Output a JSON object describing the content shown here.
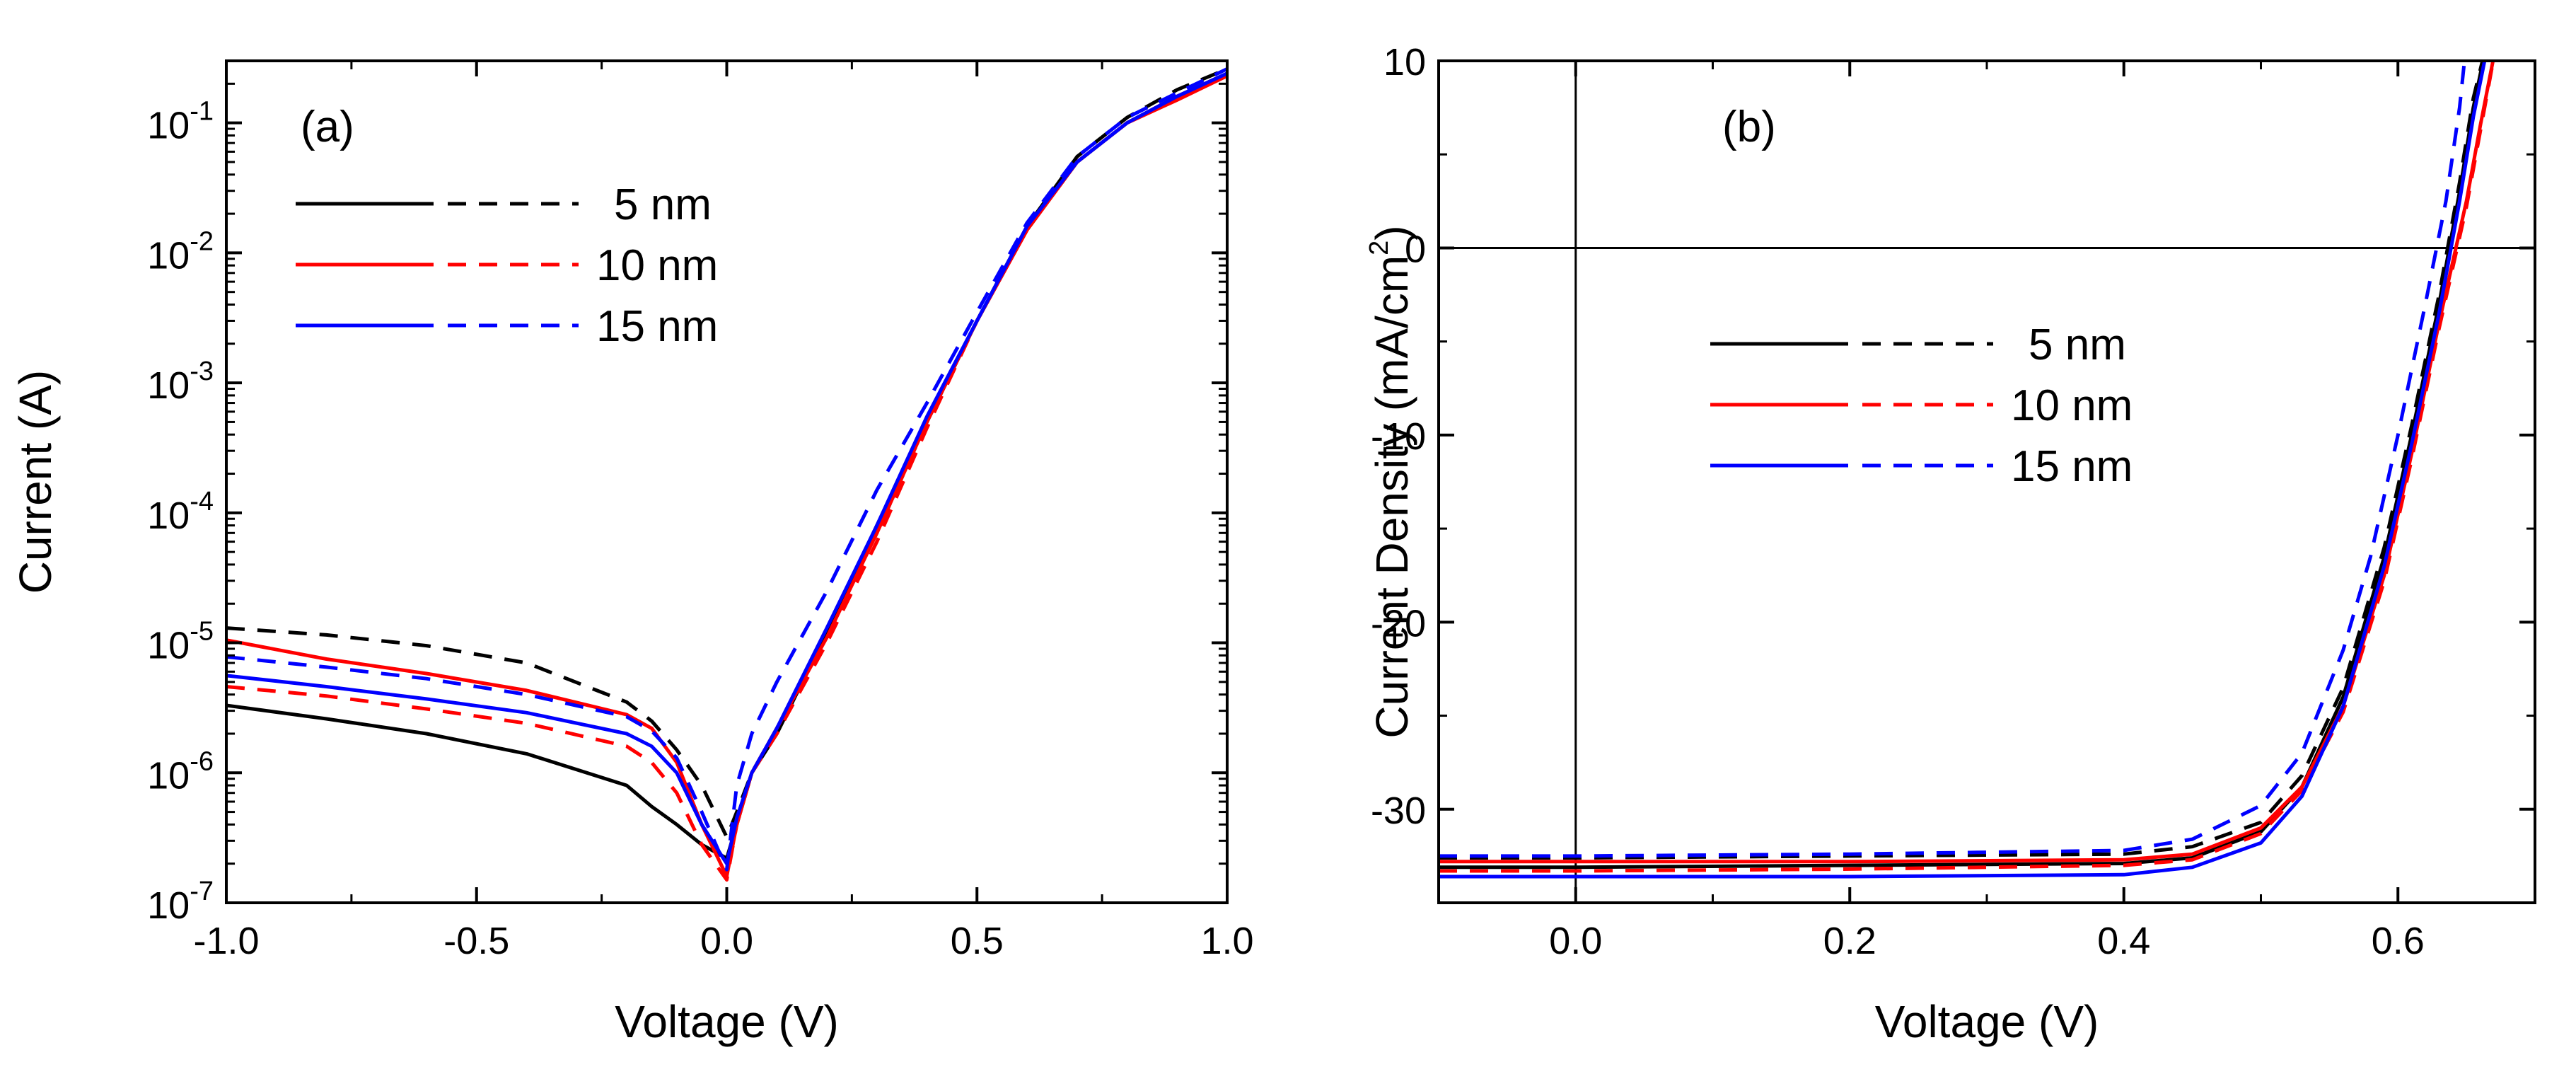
{
  "chart_data": [
    {
      "panel": "(a)",
      "type": "line",
      "xlabel": "Voltage (V)",
      "ylabel": "Current (A)",
      "xlim": [
        -1.0,
        1.0
      ],
      "ylim": [
        1e-07,
        0.3
      ],
      "yscale": "log",
      "grid": false,
      "legend_position": "top-left",
      "xticks": [
        {
          "label": "-1.0",
          "value": -1.0
        },
        {
          "label": "-0.5",
          "value": -0.5
        },
        {
          "label": "0.0",
          "value": 0.0
        },
        {
          "label": "0.5",
          "value": 0.5
        },
        {
          "label": "1.0",
          "value": 1.0
        }
      ],
      "yticks": [
        {
          "base": "10",
          "exp": "-7",
          "value": 1e-07
        },
        {
          "base": "10",
          "exp": "-6",
          "value": 1e-06
        },
        {
          "base": "10",
          "exp": "-5",
          "value": 1e-05
        },
        {
          "base": "10",
          "exp": "-4",
          "value": 0.0001
        },
        {
          "base": "10",
          "exp": "-3",
          "value": 0.001
        },
        {
          "base": "10",
          "exp": "-2",
          "value": 0.01
        },
        {
          "base": "10",
          "exp": "-1",
          "value": 0.1
        }
      ],
      "legend": [
        {
          "label": "5 nm",
          "color": "#000000"
        },
        {
          "label": "10 nm",
          "color": "#ff0000"
        },
        {
          "label": "15 nm",
          "color": "#0000ff"
        }
      ],
      "series": [
        {
          "color": "#000000",
          "style": "solid",
          "x": [
            -1.0,
            -0.8,
            -0.6,
            -0.4,
            -0.2,
            -0.15,
            -0.1,
            -0.05,
            0.0,
            0.02,
            0.05,
            0.1,
            0.2,
            0.3,
            0.4,
            0.5,
            0.6,
            0.7,
            0.8,
            0.9,
            1.0
          ],
          "y": [
            3.3e-06,
            2.6e-06,
            2e-06,
            1.4e-06,
            8e-07,
            5.5e-07,
            4e-07,
            2.8e-07,
            2.2e-07,
            4e-07,
            1e-06,
            2e-06,
            1.2e-05,
            8e-05,
            0.0005,
            0.003,
            0.015,
            0.05,
            0.1,
            0.16,
            0.24
          ]
        },
        {
          "color": "#000000",
          "style": "dashed",
          "x": [
            -1.0,
            -0.8,
            -0.6,
            -0.4,
            -0.2,
            -0.15,
            -0.1,
            -0.05,
            0.0,
            0.02,
            0.05,
            0.1,
            0.2,
            0.3,
            0.4,
            0.5,
            0.6,
            0.7,
            0.8,
            0.9,
            1.0
          ],
          "y": [
            1.3e-05,
            1.15e-05,
            9.5e-06,
            7e-06,
            3.5e-06,
            2.5e-06,
            1.5e-06,
            8e-07,
            3.2e-07,
            5e-07,
            1e-06,
            2.2e-06,
            1.2e-05,
            7e-05,
            0.0005,
            0.003,
            0.016,
            0.055,
            0.11,
            0.18,
            0.26
          ]
        },
        {
          "color": "#ff0000",
          "style": "solid",
          "x": [
            -1.0,
            -0.8,
            -0.6,
            -0.4,
            -0.2,
            -0.15,
            -0.1,
            -0.05,
            0.0,
            0.02,
            0.05,
            0.1,
            0.2,
            0.3,
            0.4,
            0.5,
            0.6,
            0.7,
            0.8,
            0.9,
            1.0
          ],
          "y": [
            1.05e-05,
            7.5e-06,
            5.8e-06,
            4.3e-06,
            2.8e-06,
            2.2e-06,
            1.2e-06,
            4e-07,
            1.6e-07,
            4e-07,
            1e-06,
            2.2e-06,
            1.1e-05,
            7e-05,
            0.0005,
            0.003,
            0.015,
            0.05,
            0.1,
            0.15,
            0.23
          ]
        },
        {
          "color": "#ff0000",
          "style": "dashed",
          "x": [
            -1.0,
            -0.8,
            -0.6,
            -0.4,
            -0.2,
            -0.15,
            -0.1,
            -0.05,
            0.0,
            0.02,
            0.05,
            0.1,
            0.2,
            0.3,
            0.4,
            0.5,
            0.6,
            0.7,
            0.8,
            0.9,
            1.0
          ],
          "y": [
            4.6e-06,
            3.9e-06,
            3.1e-06,
            2.4e-06,
            1.6e-06,
            1.2e-06,
            7e-07,
            2.8e-07,
            1.5e-07,
            4e-07,
            1e-06,
            2e-06,
            1e-05,
            6e-05,
            0.00045,
            0.003,
            0.015,
            0.05,
            0.1,
            0.16,
            0.24
          ]
        },
        {
          "color": "#0000ff",
          "style": "solid",
          "x": [
            -1.0,
            -0.8,
            -0.6,
            -0.4,
            -0.2,
            -0.15,
            -0.1,
            -0.05,
            0.0,
            0.02,
            0.05,
            0.1,
            0.2,
            0.3,
            0.4,
            0.5,
            0.6,
            0.7,
            0.8,
            0.9,
            1.0
          ],
          "y": [
            5.6e-06,
            4.6e-06,
            3.7e-06,
            2.9e-06,
            2e-06,
            1.6e-06,
            1e-06,
            4e-07,
            2e-07,
            4.5e-07,
            1e-06,
            2.2e-06,
            1.3e-05,
            8e-05,
            0.00055,
            0.003,
            0.016,
            0.05,
            0.1,
            0.16,
            0.24
          ]
        },
        {
          "color": "#0000ff",
          "style": "dashed",
          "x": [
            -1.0,
            -0.8,
            -0.6,
            -0.4,
            -0.2,
            -0.15,
            -0.1,
            -0.05,
            0.0,
            0.02,
            0.05,
            0.1,
            0.2,
            0.3,
            0.4,
            0.5,
            0.6,
            0.7,
            0.8,
            0.9,
            1.0
          ],
          "y": [
            7.8e-06,
            6.5e-06,
            5.3e-06,
            4e-06,
            2.7e-06,
            2.1e-06,
            1.3e-06,
            5e-07,
            1.8e-07,
            8e-07,
            2e-06,
            5e-06,
            2.5e-05,
            0.00015,
            0.0007,
            0.0035,
            0.017,
            0.055,
            0.11,
            0.17,
            0.26
          ]
        }
      ]
    },
    {
      "panel": "(b)",
      "type": "line",
      "xlabel": "Voltage (V)",
      "ylabel_main": "Current Density (mA/cm",
      "ylabel_sup": "2",
      "ylabel_end": ")",
      "xlim": [
        -0.1,
        0.7
      ],
      "ylim": [
        -35,
        10
      ],
      "grid": false,
      "legend_position": "middle-left",
      "reference_lines": {
        "x": 0,
        "y": 0
      },
      "xticks": [
        {
          "label": "0.0",
          "value": 0.0
        },
        {
          "label": "0.2",
          "value": 0.2
        },
        {
          "label": "0.4",
          "value": 0.4
        },
        {
          "label": "0.6",
          "value": 0.6
        }
      ],
      "yticks": [
        {
          "label": "10",
          "value": 10
        },
        {
          "label": "0",
          "value": 0
        },
        {
          "label": "-10",
          "value": -10
        },
        {
          "label": "-20",
          "value": -20
        },
        {
          "label": "-30",
          "value": -30
        }
      ],
      "legend": [
        {
          "label": "5 nm",
          "color": "#000000"
        },
        {
          "label": "10 nm",
          "color": "#ff0000"
        },
        {
          "label": "15 nm",
          "color": "#0000ff"
        }
      ],
      "series": [
        {
          "color": "#000000",
          "style": "solid",
          "x": [
            -0.1,
            0.0,
            0.2,
            0.4,
            0.45,
            0.5,
            0.53,
            0.56,
            0.59,
            0.61,
            0.63,
            0.645,
            0.655,
            0.665
          ],
          "y": [
            -33.1,
            -33.1,
            -33.0,
            -32.9,
            -32.6,
            -31.2,
            -28.8,
            -24.0,
            -16.5,
            -10.0,
            -3.0,
            3.0,
            7.5,
            11.0
          ]
        },
        {
          "color": "#000000",
          "style": "dashed",
          "x": [
            -0.1,
            0.0,
            0.2,
            0.4,
            0.45,
            0.5,
            0.53,
            0.56,
            0.59,
            0.61,
            0.63,
            0.645,
            0.655,
            0.665
          ],
          "y": [
            -32.6,
            -32.6,
            -32.5,
            -32.4,
            -32.0,
            -30.7,
            -28.2,
            -23.5,
            -16.0,
            -9.5,
            -2.5,
            3.5,
            8.0,
            11.0
          ]
        },
        {
          "color": "#ff0000",
          "style": "solid",
          "x": [
            -0.1,
            0.0,
            0.2,
            0.4,
            0.45,
            0.5,
            0.53,
            0.56,
            0.59,
            0.61,
            0.63,
            0.65,
            0.66,
            0.672
          ],
          "y": [
            -32.8,
            -32.8,
            -32.8,
            -32.7,
            -32.4,
            -31.0,
            -28.8,
            -24.5,
            -17.5,
            -11.0,
            -4.0,
            2.5,
            6.5,
            11.0
          ]
        },
        {
          "color": "#ff0000",
          "style": "dashed",
          "x": [
            -0.1,
            0.0,
            0.2,
            0.4,
            0.45,
            0.5,
            0.53,
            0.56,
            0.59,
            0.61,
            0.63,
            0.65,
            0.66,
            0.672
          ],
          "y": [
            -33.3,
            -33.3,
            -33.2,
            -33.0,
            -32.7,
            -31.3,
            -29.0,
            -24.8,
            -17.8,
            -11.3,
            -4.3,
            2.2,
            6.2,
            11.0
          ]
        },
        {
          "color": "#0000ff",
          "style": "solid",
          "x": [
            -0.1,
            0.0,
            0.2,
            0.4,
            0.45,
            0.5,
            0.53,
            0.56,
            0.59,
            0.61,
            0.63,
            0.645,
            0.655,
            0.666
          ],
          "y": [
            -33.6,
            -33.6,
            -33.6,
            -33.5,
            -33.1,
            -31.8,
            -29.3,
            -24.5,
            -17.0,
            -10.5,
            -3.5,
            2.5,
            7.0,
            11.0
          ]
        },
        {
          "color": "#0000ff",
          "style": "dashed",
          "x": [
            -0.1,
            0.0,
            0.2,
            0.4,
            0.45,
            0.5,
            0.53,
            0.56,
            0.58,
            0.6,
            0.62,
            0.635,
            0.645,
            0.65
          ],
          "y": [
            -32.5,
            -32.5,
            -32.4,
            -32.2,
            -31.6,
            -29.8,
            -27.0,
            -21.5,
            -16.5,
            -10.0,
            -3.0,
            2.5,
            7.5,
            11.0
          ]
        }
      ]
    }
  ]
}
